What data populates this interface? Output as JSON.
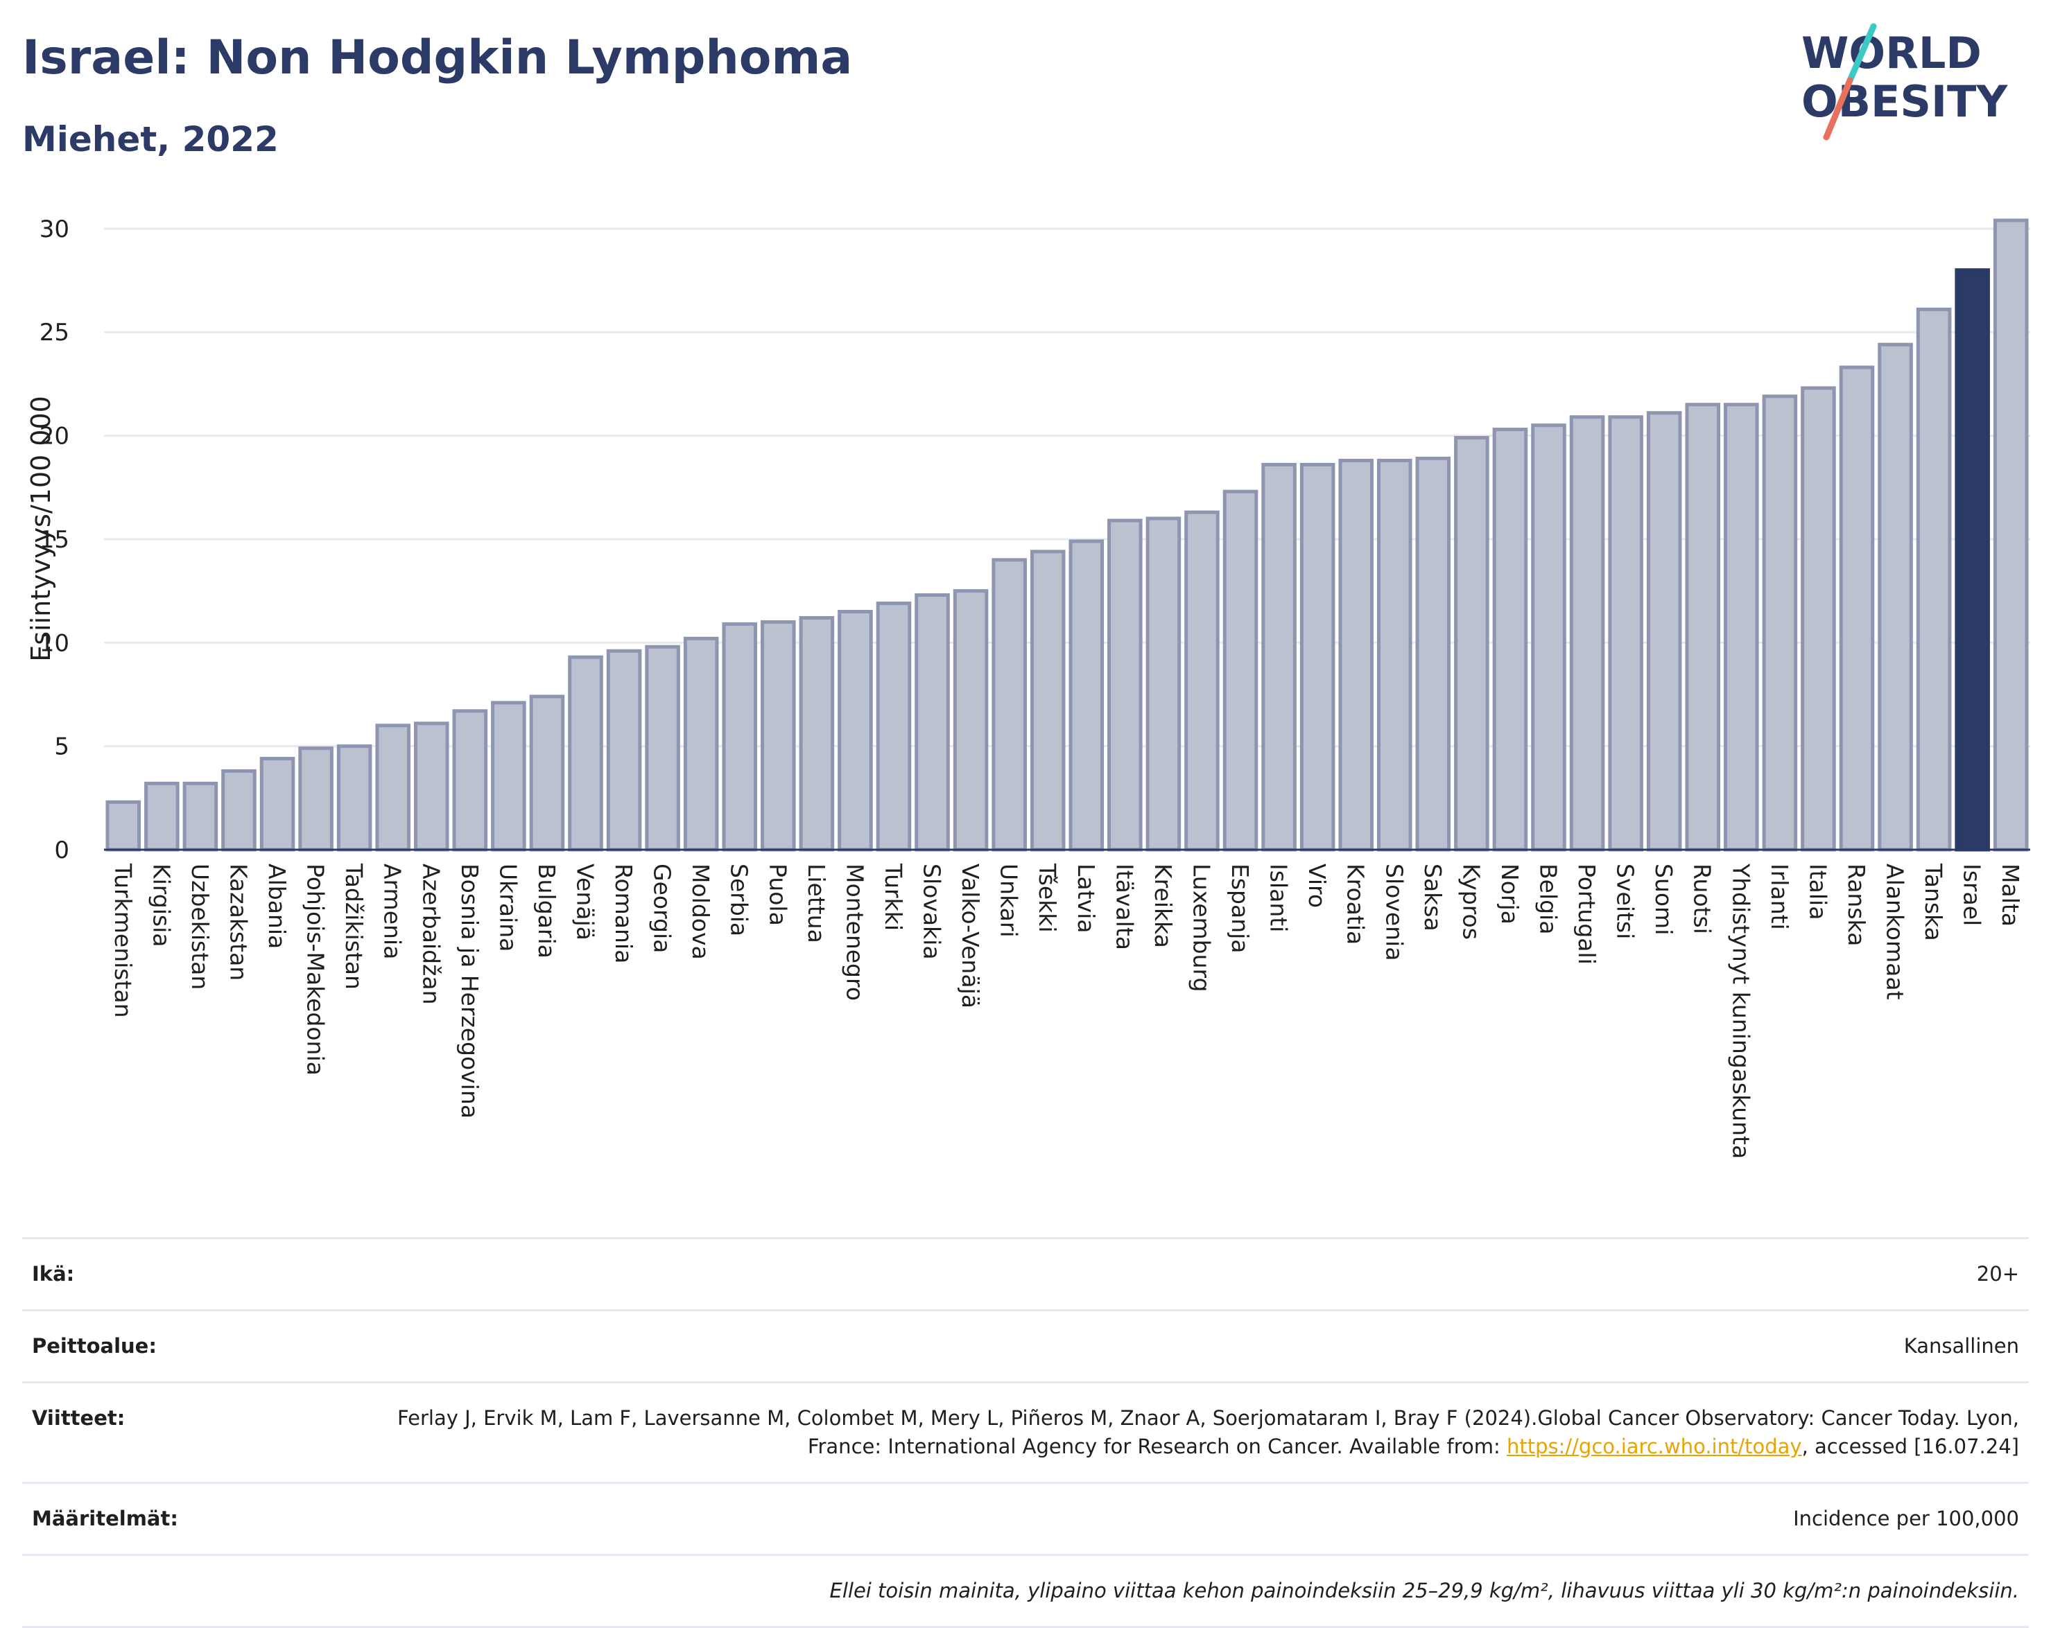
{
  "header": {
    "title": "Israel: Non Hodgkin Lymphoma",
    "subtitle": "Miehet, 2022"
  },
  "logo": {
    "line1": "WORLD",
    "line2": "OBESITY",
    "colors": {
      "text": "#2b3a67",
      "slash_top": "#3cc8c4",
      "slash_bottom": "#e8705f"
    }
  },
  "colors": {
    "bar": "#bcc1d0",
    "bar_edge": "#8e95b0",
    "highlight": "#2b3a67",
    "grid": "#e8e9ef",
    "axis_text": "#1f1f1f"
  },
  "chart_data": {
    "type": "bar",
    "ylabel": "Esiintyvyys/100 000",
    "ylim": [
      0,
      31
    ],
    "yticks": [
      0,
      5,
      10,
      15,
      20,
      25,
      30
    ],
    "grid": true,
    "highlight": "Israel",
    "categories": [
      "Turkmenistan",
      "Kirgisia",
      "Uzbekistan",
      "Kazakstan",
      "Albania",
      "Pohjois-Makedonia",
      "Tadžikistan",
      "Armenia",
      "Azerbaidžan",
      "Bosnia ja Herzegovina",
      "Ukraina",
      "Bulgaria",
      "Venäjä",
      "Romania",
      "Georgia",
      "Moldova",
      "Serbia",
      "Puola",
      "Liettua",
      "Montenegro",
      "Turkki",
      "Slovakia",
      "Valko-Venäjä",
      "Unkari",
      "Tšekki",
      "Latvia",
      "Itävalta",
      "Kreikka",
      "Luxemburg",
      "Espanja",
      "Islanti",
      "Viro",
      "Kroatia",
      "Slovenia",
      "Saksa",
      "Kypros",
      "Norja",
      "Belgia",
      "Portugali",
      "Sveitsi",
      "Suomi",
      "Ruotsi",
      "Yhdistynyt kuningaskunta",
      "Irlanti",
      "Italia",
      "Ranska",
      "Alankomaat",
      "Tanska",
      "Israel",
      "Malta"
    ],
    "values": [
      2.3,
      3.2,
      3.2,
      3.8,
      4.4,
      4.9,
      5.0,
      6.0,
      6.1,
      6.7,
      7.1,
      7.4,
      9.3,
      9.6,
      9.8,
      10.2,
      10.9,
      11.0,
      11.2,
      11.5,
      11.9,
      12.3,
      12.5,
      14.0,
      14.4,
      14.9,
      15.9,
      16.0,
      16.3,
      17.3,
      18.6,
      18.6,
      18.8,
      18.8,
      18.9,
      19.9,
      20.3,
      20.5,
      20.9,
      20.9,
      21.1,
      21.5,
      21.5,
      21.9,
      22.3,
      23.3,
      24.4,
      26.1,
      28.0,
      30.4
    ]
  },
  "meta": {
    "age_label": "Ikä:",
    "age_value": "20+",
    "coverage_label": "Peittoalue:",
    "coverage_value": "Kansallinen",
    "refs_label": "Viitteet:",
    "refs_text_1": "Ferlay J, Ervik M, Lam F, Laversanne M, Colombet M, Mery L, Piñeros M, Znaor A, Soerjomataram I, Bray F (2024).Global Cancer Observatory: Cancer Today. Lyon, France: International Agency for Research on Cancer. Available from: ",
    "refs_link": "https://gco.iarc.who.int/today",
    "refs_text_2": ", accessed [16.07.24]",
    "defs_label": "Määritelmät:",
    "defs_value": "Incidence per 100,000",
    "note": "Ellei toisin mainita, ylipaino viittaa kehon painoindeksiin 25–29,9 kg/m², lihavuus viittaa yli 30 kg/m²:n painoindeksiin."
  }
}
